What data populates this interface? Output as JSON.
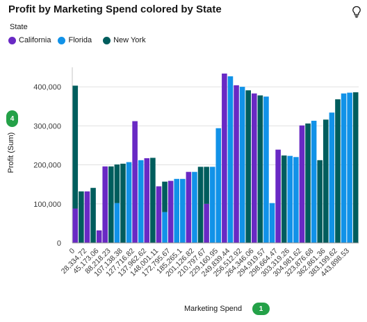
{
  "title": "Profit by Marketing Spend colored by State",
  "legend": {
    "title": "State",
    "items": [
      {
        "label": "California",
        "color": "#6929c4"
      },
      {
        "label": "Florida",
        "color": "#1192e8"
      },
      {
        "label": "New York",
        "color": "#005d5d"
      }
    ]
  },
  "y_badge": "4",
  "x_badge": "1",
  "chart_data": {
    "type": "bar",
    "xlabel": "Marketing Spend",
    "ylabel": "Profit (Sum)",
    "ylim": [
      0,
      450000
    ],
    "yticks": [
      0,
      100000,
      200000,
      300000,
      400000
    ],
    "ytick_labels": [
      "0",
      "100,000",
      "200,000",
      "300,000",
      "400,000"
    ],
    "grid": true,
    "legend_position": "top-left",
    "xtick_labels": [
      "0",
      "28,334.72",
      "45,173.06",
      "88,218.23",
      "107,138.38",
      "127,716.82",
      "137,962.62",
      "148,001.11",
      "172,795.67",
      "185,265.1",
      "201,126.82",
      "210,797.67",
      "229,160.95",
      "249,839.44",
      "256,512.92",
      "264,346.06",
      "294,919.57",
      "298,664.47",
      "303,319.26",
      "304,981.62",
      "323,876.68",
      "362,861.36",
      "383,199.62",
      "443,898.53"
    ],
    "colors": {
      "California": "#6929c4",
      "Florida": "#1192e8",
      "New York": "#005d5d"
    },
    "bars": [
      {
        "state": "California",
        "value": 88000,
        "segments": [
          {
            "state": "New York",
            "value": 315000
          }
        ]
      },
      {
        "state": "New York",
        "value": 132000
      },
      {
        "state": "California",
        "value": 132000
      },
      {
        "state": "New York",
        "value": 141000
      },
      {
        "state": "California",
        "value": 32000
      },
      {
        "state": "California",
        "value": 196000
      },
      {
        "state": "New York",
        "value": 196000
      },
      {
        "state": "Florida",
        "value": 102000,
        "segments": [
          {
            "state": "New York",
            "value": 99000
          }
        ]
      },
      {
        "state": "New York",
        "value": 203000
      },
      {
        "state": "Florida",
        "value": 207000
      },
      {
        "state": "California",
        "value": 312000
      },
      {
        "state": "Florida",
        "value": 212000
      },
      {
        "state": "California",
        "value": 217000
      },
      {
        "state": "New York",
        "value": 218000
      },
      {
        "state": "California",
        "value": 145000
      },
      {
        "state": "Florida",
        "value": 79000,
        "segments": [
          {
            "state": "New York",
            "value": 78000
          }
        ]
      },
      {
        "state": "California",
        "value": 159000
      },
      {
        "state": "Florida",
        "value": 164000
      },
      {
        "state": "Florida",
        "value": 164000
      },
      {
        "state": "California",
        "value": 182000
      },
      {
        "state": "Florida",
        "value": 182000
      },
      {
        "state": "New York",
        "value": 195000
      },
      {
        "state": "California",
        "value": 100000,
        "segments": [
          {
            "state": "New York",
            "value": 95000
          }
        ]
      },
      {
        "state": "Florida",
        "value": 195000
      },
      {
        "state": "Florida",
        "value": 294000
      },
      {
        "state": "California",
        "value": 434000
      },
      {
        "state": "Florida",
        "value": 427000
      },
      {
        "state": "California",
        "value": 404000
      },
      {
        "state": "Florida",
        "value": 400000
      },
      {
        "state": "New York",
        "value": 391000
      },
      {
        "state": "California",
        "value": 383000
      },
      {
        "state": "New York",
        "value": 378000
      },
      {
        "state": "Florida",
        "value": 375000
      },
      {
        "state": "Florida",
        "value": 102000
      },
      {
        "state": "California",
        "value": 239000
      },
      {
        "state": "New York",
        "value": 224000
      },
      {
        "state": "Florida",
        "value": 223000
      },
      {
        "state": "Florida",
        "value": 220000
      },
      {
        "state": "California",
        "value": 301000
      },
      {
        "state": "New York",
        "value": 306000
      },
      {
        "state": "Florida",
        "value": 313000
      },
      {
        "state": "New York",
        "value": 212000
      },
      {
        "state": "New York",
        "value": 316000
      },
      {
        "state": "Florida",
        "value": 334000
      },
      {
        "state": "New York",
        "value": 368000
      },
      {
        "state": "Florida",
        "value": 383000
      },
      {
        "state": "Florida",
        "value": 385000
      },
      {
        "state": "New York",
        "value": 386000
      }
    ]
  }
}
